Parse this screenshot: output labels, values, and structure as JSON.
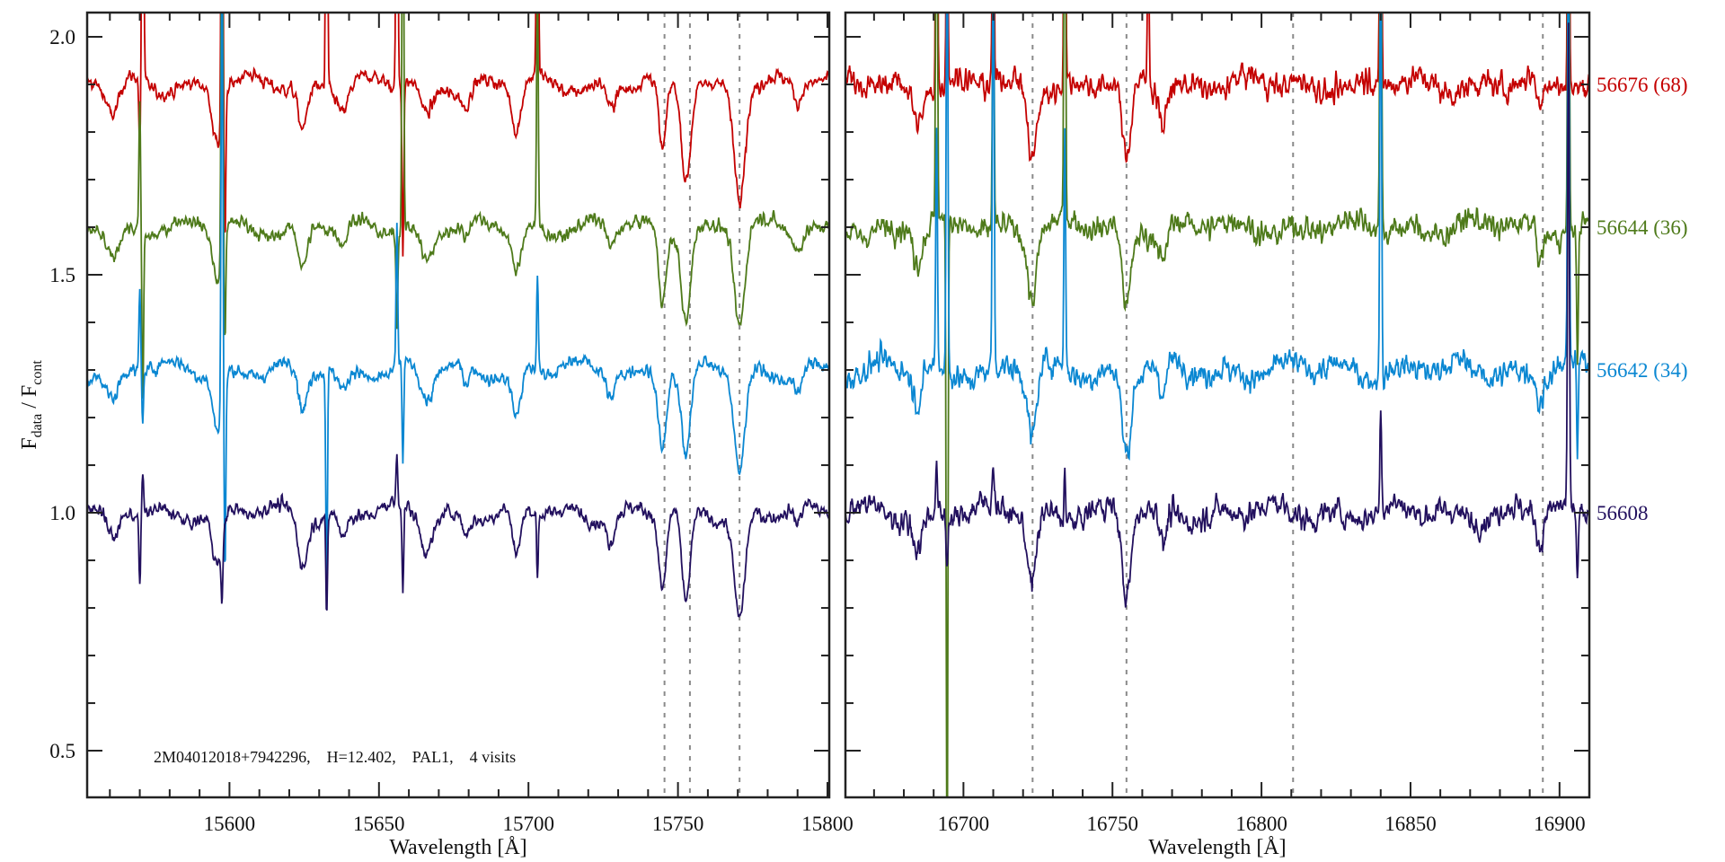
{
  "chart_data": {
    "type": "line",
    "ylabel": {
      "main": "F",
      "sub1": "data",
      "sep": " / F",
      "sub2": "cont"
    },
    "xlabel": "Wavelength [Å]",
    "ylim": [
      0.402,
      2.051
    ],
    "yticks": [
      0.5,
      1.0,
      1.5,
      2.0
    ],
    "ytick_labels": [
      "0.5",
      "1.0",
      "1.5",
      "2.0"
    ],
    "yminor_step": 0.1,
    "annotation": "2M04012018+7942296,    H=12.402,    PAL1,    4 visits",
    "series": [
      {
        "name": "56676 (68)",
        "offset": 0.9,
        "color": "#c40000"
      },
      {
        "name": "56644 (36)",
        "offset": 0.6,
        "color": "#4e7a1a"
      },
      {
        "name": "56642 (34)",
        "offset": 0.3,
        "color": "#0a87d2"
      },
      {
        "name": "56608",
        "offset": 0.0,
        "color": "#22105e"
      }
    ],
    "panels": [
      {
        "xlim": [
          15552.4,
          15800.6
        ],
        "xticks": [
          15600,
          15650,
          15700,
          15750,
          15800
        ],
        "xtick_labels": [
          "15600",
          "15650",
          "15700",
          "15750",
          "15800"
        ],
        "dashed_lines": [
          15745.5,
          15754.0,
          15770.6
        ],
        "noise": 0.011,
        "absorption_lines": [
          {
            "center": 15561,
            "depth": 0.07,
            "sigma": 2.0
          },
          {
            "center": 15596,
            "depth": 0.12,
            "sigma": 1.6
          },
          {
            "center": 15624.5,
            "depth": 0.1,
            "sigma": 1.5
          },
          {
            "center": 15638,
            "depth": 0.05,
            "sigma": 1.5
          },
          {
            "center": 15666,
            "depth": 0.07,
            "sigma": 2.0
          },
          {
            "center": 15679,
            "depth": 0.04,
            "sigma": 1.2
          },
          {
            "center": 15696,
            "depth": 0.1,
            "sigma": 1.5
          },
          {
            "center": 15727.5,
            "depth": 0.05,
            "sigma": 1.2
          },
          {
            "center": 15744.8,
            "depth": 0.16,
            "sigma": 1.3
          },
          {
            "center": 15752.7,
            "depth": 0.2,
            "sigma": 1.5
          },
          {
            "center": 15770.6,
            "depth": 0.22,
            "sigma": 1.8
          },
          {
            "center": 15790,
            "depth": 0.04,
            "sigma": 1.2
          }
        ],
        "spikes": [
          {
            "center": 15570.0,
            "amp": [
              -0.15,
              0.27,
              0.17,
              -0.15
            ]
          },
          {
            "center": 15571.0,
            "amp": [
              1.0,
              -0.35,
              -0.1,
              0.08
            ]
          },
          {
            "center": 15597.5,
            "amp": [
              1.0,
              1.0,
              1.0,
              -0.14
            ]
          },
          {
            "center": 15598.5,
            "amp": [
              -0.3,
              -0.2,
              -0.4,
              0.0
            ]
          },
          {
            "center": 15632.5,
            "amp": [
              1.0,
              0.0,
              -0.45,
              -0.22
            ]
          },
          {
            "center": 15656.0,
            "amp": [
              1.0,
              -0.2,
              0.3,
              0.1
            ]
          },
          {
            "center": 15658.0,
            "amp": [
              -0.35,
              1.0,
              -0.2,
              -0.18
            ]
          },
          {
            "center": 15703.0,
            "amp": [
              1.0,
              0.5,
              0.2,
              -0.13
            ]
          }
        ]
      },
      {
        "xlim": [
          16660.4,
          16910.0
        ],
        "xticks": [
          16700,
          16750,
          16800,
          16850,
          16900
        ],
        "xtick_labels": [
          "16700",
          "16750",
          "16800",
          "16850",
          "16900"
        ],
        "dashed_lines": [
          16723.2,
          16754.7,
          16810.6,
          16894.4
        ],
        "noise": 0.02,
        "absorption_lines": [
          {
            "center": 16684.7,
            "depth": 0.07,
            "sigma": 1.5
          },
          {
            "center": 16723.0,
            "depth": 0.15,
            "sigma": 1.5
          },
          {
            "center": 16754.7,
            "depth": 0.18,
            "sigma": 1.5
          },
          {
            "center": 16767.0,
            "depth": 0.08,
            "sigma": 1.0
          },
          {
            "center": 16893.5,
            "depth": 0.07,
            "sigma": 1.0
          }
        ],
        "spikes": [
          {
            "center": 16691.0,
            "amp": [
              1.0,
              1.0,
              0.5,
              0.1
            ]
          },
          {
            "center": 16694.5,
            "amp": [
              0.5,
              -1.4,
              1.0,
              -0.1
            ]
          },
          {
            "center": 16710.0,
            "amp": [
              0.6,
              0.6,
              1.0,
              0.1
            ]
          },
          {
            "center": 16734.0,
            "amp": [
              1.0,
              1.0,
              0.5,
              0.1
            ]
          },
          {
            "center": 16762.0,
            "amp": [
              0.3,
              0.0,
              0.0,
              0.0
            ]
          },
          {
            "center": 16840.0,
            "amp": [
              1.0,
              1.0,
              1.0,
              0.2
            ]
          },
          {
            "center": 16903.0,
            "amp": [
              1.0,
              1.0,
              1.0,
              1.0
            ]
          },
          {
            "center": 16906.0,
            "amp": [
              0.0,
              -0.3,
              -0.2,
              -0.15
            ]
          }
        ]
      }
    ]
  }
}
